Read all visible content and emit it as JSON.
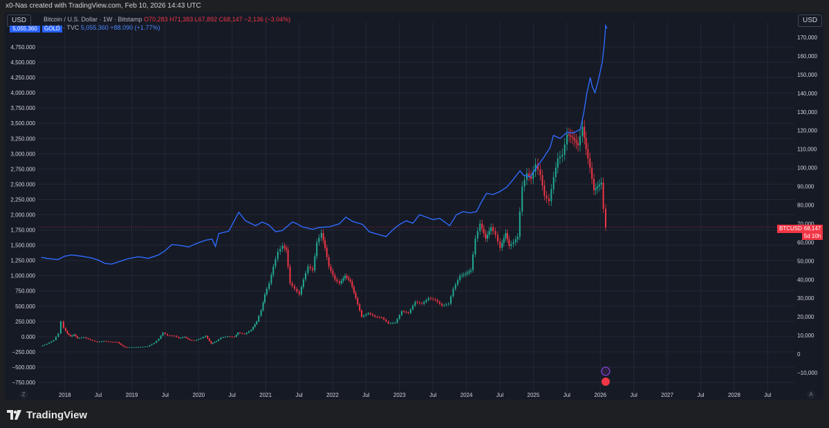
{
  "caption": "x0-Nas created with TradingView.com, Feb 10, 2026 14:43 UTC",
  "left_unit": "USD",
  "right_unit": "USD",
  "legend": {
    "btc_title": "Bitcoin / U.S. Dollar · 1W · Bitstamp",
    "btc_ohlc": "O70,283  H71,383  L67,892  C68,147  −2,136 (−3.04%)",
    "gold_title": "GOLD · TVC",
    "gold_values": "5,055.360  +88.090 (+1.77%)"
  },
  "gold_tag": "5,055.360",
  "gold_name": "GOLD",
  "btc_tag": "BTCUSD",
  "btc_price": "68,147",
  "btc_countdown": "5d 10h",
  "logo": "TradingView",
  "corner_left": "Z",
  "corner_right": "A",
  "chart_data": {
    "type": "line",
    "left_axis": {
      "series": "GOLD",
      "ticks": [
        "4,750.000",
        "4,500.000",
        "4,250.000",
        "4,000.000",
        "3,750.000",
        "3,500.000",
        "3,250.000",
        "3,000.000",
        "2,750.000",
        "2,500.000",
        "2,250.000",
        "2,000.000",
        "1,750.000",
        "1,500.000",
        "1,250.000",
        "1,000.000",
        "750.000",
        "500.000",
        "250.000",
        "0.000",
        "−250.000",
        "−500.000",
        "−750.000"
      ],
      "range": [
        -750,
        4750
      ]
    },
    "right_axis": {
      "series": "BTCUSD",
      "ticks": [
        "170,000",
        "160,000",
        "150,000",
        "140,000",
        "130,000",
        "120,000",
        "110,000",
        "100,000",
        "90,000",
        "80,000",
        "70,000",
        "60,000",
        "50,000",
        "40,000",
        "30,000",
        "20,000",
        "10,000",
        "0",
        "−10,000"
      ],
      "range": [
        -10000,
        170000
      ]
    },
    "x_ticks": [
      "2018",
      "Jul",
      "2019",
      "Jul",
      "2020",
      "Jul",
      "2021",
      "Jul",
      "2022",
      "Jul",
      "2023",
      "Jul",
      "2024",
      "Jul",
      "2025",
      "Jul",
      "2026",
      "Jul",
      "2027",
      "Jul",
      "2028",
      "Jul"
    ],
    "x_range": [
      2017.6,
      2028.9
    ],
    "colors": {
      "gold": "#2f6bff",
      "up": "#22ab94",
      "down": "#f23645",
      "grid": "#232837",
      "price_line": "#f23645"
    },
    "gold": [
      [
        2017.65,
        1300
      ],
      [
        2017.75,
        1280
      ],
      [
        2017.9,
        1265
      ],
      [
        2018.0,
        1320
      ],
      [
        2018.1,
        1340
      ],
      [
        2018.25,
        1320
      ],
      [
        2018.4,
        1290
      ],
      [
        2018.5,
        1255
      ],
      [
        2018.6,
        1200
      ],
      [
        2018.7,
        1190
      ],
      [
        2018.8,
        1225
      ],
      [
        2018.95,
        1280
      ],
      [
        2019.1,
        1310
      ],
      [
        2019.25,
        1285
      ],
      [
        2019.4,
        1340
      ],
      [
        2019.5,
        1410
      ],
      [
        2019.6,
        1510
      ],
      [
        2019.7,
        1500
      ],
      [
        2019.85,
        1470
      ],
      [
        2019.95,
        1520
      ],
      [
        2020.1,
        1580
      ],
      [
        2020.2,
        1600
      ],
      [
        2020.25,
        1480
      ],
      [
        2020.3,
        1690
      ],
      [
        2020.45,
        1730
      ],
      [
        2020.55,
        1940
      ],
      [
        2020.6,
        2040
      ],
      [
        2020.7,
        1900
      ],
      [
        2020.85,
        1820
      ],
      [
        2020.95,
        1880
      ],
      [
        2021.05,
        1830
      ],
      [
        2021.15,
        1720
      ],
      [
        2021.25,
        1740
      ],
      [
        2021.4,
        1880
      ],
      [
        2021.45,
        1860
      ],
      [
        2021.55,
        1800
      ],
      [
        2021.7,
        1760
      ],
      [
        2021.8,
        1790
      ],
      [
        2021.95,
        1800
      ],
      [
        2022.1,
        1850
      ],
      [
        2022.2,
        1960
      ],
      [
        2022.3,
        1890
      ],
      [
        2022.45,
        1840
      ],
      [
        2022.55,
        1720
      ],
      [
        2022.7,
        1670
      ],
      [
        2022.8,
        1640
      ],
      [
        2022.9,
        1750
      ],
      [
        2023.0,
        1840
      ],
      [
        2023.1,
        1900
      ],
      [
        2023.2,
        1860
      ],
      [
        2023.3,
        2000
      ],
      [
        2023.4,
        1960
      ],
      [
        2023.5,
        1920
      ],
      [
        2023.6,
        1940
      ],
      [
        2023.7,
        1860
      ],
      [
        2023.75,
        1820
      ],
      [
        2023.85,
        2000
      ],
      [
        2023.95,
        2050
      ],
      [
        2024.05,
        2030
      ],
      [
        2024.15,
        2050
      ],
      [
        2024.22,
        2200
      ],
      [
        2024.3,
        2350
      ],
      [
        2024.4,
        2330
      ],
      [
        2024.5,
        2380
      ],
      [
        2024.6,
        2450
      ],
      [
        2024.7,
        2580
      ],
      [
        2024.8,
        2720
      ],
      [
        2024.85,
        2650
      ],
      [
        2024.95,
        2620
      ],
      [
        2025.05,
        2780
      ],
      [
        2025.15,
        2930
      ],
      [
        2025.25,
        3100
      ],
      [
        2025.3,
        3300
      ],
      [
        2025.4,
        3250
      ],
      [
        2025.5,
        3350
      ],
      [
        2025.6,
        3340
      ],
      [
        2025.7,
        3400
      ],
      [
        2025.75,
        3650
      ],
      [
        2025.8,
        4000
      ],
      [
        2025.85,
        4250
      ],
      [
        2025.88,
        4100
      ],
      [
        2025.92,
        4000
      ],
      [
        2025.97,
        4200
      ],
      [
        2026.0,
        4350
      ],
      [
        2026.03,
        4500
      ],
      [
        2026.06,
        4800
      ],
      [
        2026.08,
        5100
      ],
      [
        2026.1,
        5055
      ]
    ],
    "btc": [
      [
        2017.65,
        4200
      ],
      [
        2017.75,
        5500
      ],
      [
        2017.85,
        7500
      ],
      [
        2017.92,
        11000
      ],
      [
        2017.96,
        17500
      ],
      [
        2018.0,
        14000
      ],
      [
        2018.05,
        11000
      ],
      [
        2018.1,
        9500
      ],
      [
        2018.15,
        10500
      ],
      [
        2018.2,
        8500
      ],
      [
        2018.3,
        9000
      ],
      [
        2018.4,
        7500
      ],
      [
        2018.5,
        6500
      ],
      [
        2018.6,
        7000
      ],
      [
        2018.7,
        6500
      ],
      [
        2018.8,
        6400
      ],
      [
        2018.85,
        5000
      ],
      [
        2018.9,
        3800
      ],
      [
        2018.95,
        3600
      ],
      [
        2019.05,
        3700
      ],
      [
        2019.15,
        3800
      ],
      [
        2019.25,
        4100
      ],
      [
        2019.35,
        6000
      ],
      [
        2019.42,
        8200
      ],
      [
        2019.48,
        11500
      ],
      [
        2019.55,
        10000
      ],
      [
        2019.65,
        9800
      ],
      [
        2019.72,
        8500
      ],
      [
        2019.8,
        9200
      ],
      [
        2019.88,
        7500
      ],
      [
        2019.95,
        7200
      ],
      [
        2020.05,
        8500
      ],
      [
        2020.12,
        9800
      ],
      [
        2020.2,
        5500
      ],
      [
        2020.28,
        7000
      ],
      [
        2020.35,
        8800
      ],
      [
        2020.45,
        9500
      ],
      [
        2020.55,
        9200
      ],
      [
        2020.6,
        11500
      ],
      [
        2020.7,
        10700
      ],
      [
        2020.8,
        13000
      ],
      [
        2020.88,
        17500
      ],
      [
        2020.95,
        23500
      ],
      [
        2021.0,
        32000
      ],
      [
        2021.07,
        38000
      ],
      [
        2021.13,
        47000
      ],
      [
        2021.2,
        55000
      ],
      [
        2021.27,
        58000
      ],
      [
        2021.32,
        56000
      ],
      [
        2021.38,
        38000
      ],
      [
        2021.45,
        35000
      ],
      [
        2021.52,
        32000
      ],
      [
        2021.58,
        40000
      ],
      [
        2021.65,
        47000
      ],
      [
        2021.72,
        45000
      ],
      [
        2021.78,
        60000
      ],
      [
        2021.85,
        65000
      ],
      [
        2021.9,
        57000
      ],
      [
        2021.96,
        47000
      ],
      [
        2022.05,
        40000
      ],
      [
        2022.12,
        38000
      ],
      [
        2022.2,
        42000
      ],
      [
        2022.28,
        39000
      ],
      [
        2022.36,
        30000
      ],
      [
        2022.45,
        20000
      ],
      [
        2022.55,
        22000
      ],
      [
        2022.65,
        20000
      ],
      [
        2022.75,
        19500
      ],
      [
        2022.85,
        16500
      ],
      [
        2022.95,
        16800
      ],
      [
        2023.05,
        23000
      ],
      [
        2023.15,
        22000
      ],
      [
        2023.25,
        28000
      ],
      [
        2023.35,
        27000
      ],
      [
        2023.45,
        30000
      ],
      [
        2023.55,
        29000
      ],
      [
        2023.65,
        26000
      ],
      [
        2023.75,
        27000
      ],
      [
        2023.82,
        35000
      ],
      [
        2023.92,
        42000
      ],
      [
        2024.0,
        43000
      ],
      [
        2024.08,
        45000
      ],
      [
        2024.15,
        62000
      ],
      [
        2024.22,
        70000
      ],
      [
        2024.3,
        62000
      ],
      [
        2024.38,
        68000
      ],
      [
        2024.45,
        64000
      ],
      [
        2024.52,
        57000
      ],
      [
        2024.6,
        65000
      ],
      [
        2024.65,
        58000
      ],
      [
        2024.72,
        60000
      ],
      [
        2024.78,
        63000
      ],
      [
        2024.85,
        90000
      ],
      [
        2024.92,
        97000
      ],
      [
        2024.98,
        94000
      ],
      [
        2025.05,
        102000
      ],
      [
        2025.12,
        96000
      ],
      [
        2025.18,
        85000
      ],
      [
        2025.25,
        82000
      ],
      [
        2025.32,
        95000
      ],
      [
        2025.38,
        105000
      ],
      [
        2025.45,
        107000
      ],
      [
        2025.52,
        118000
      ],
      [
        2025.6,
        116000
      ],
      [
        2025.68,
        112000
      ],
      [
        2025.75,
        122000
      ],
      [
        2025.8,
        110000
      ],
      [
        2025.86,
        100000
      ],
      [
        2025.92,
        88000
      ],
      [
        2025.97,
        90000
      ],
      [
        2026.03,
        92000
      ],
      [
        2026.06,
        78000
      ],
      [
        2026.1,
        68147
      ]
    ]
  }
}
